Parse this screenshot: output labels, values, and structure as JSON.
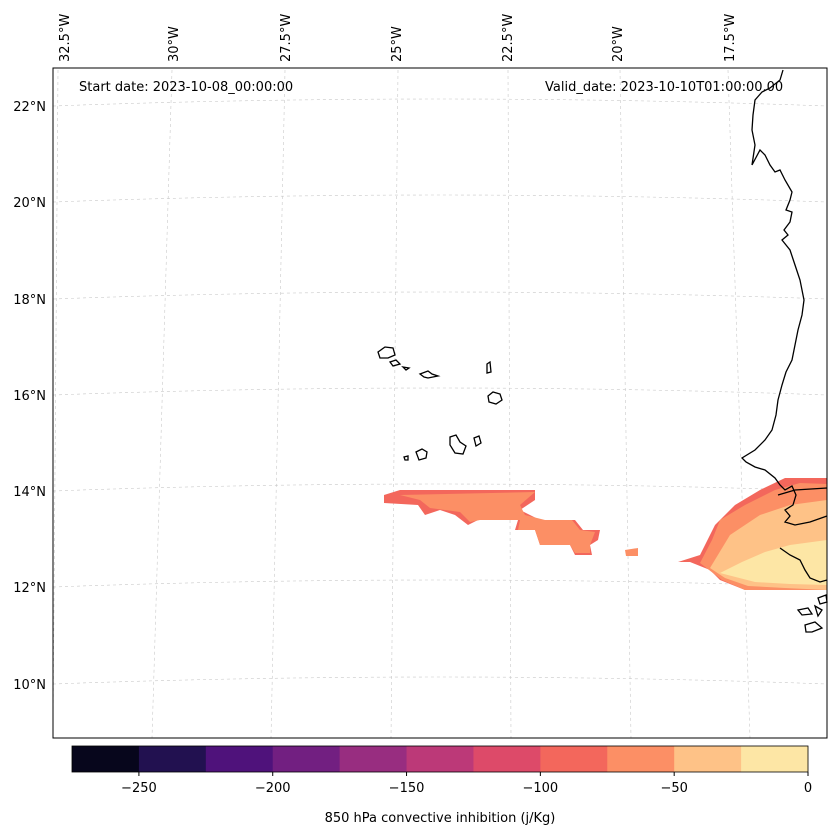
{
  "header": {
    "start_date": "Start date: 2023-10-08_00:00:00",
    "valid_date": "Valid_date: 2023-10-10T01:00:00.00"
  },
  "longitude_labels": [
    "32.5°W",
    "30°W",
    "27.5°W",
    "25°W",
    "22.5°W",
    "20°W",
    "17.5°W"
  ],
  "latitude_labels": [
    "22°N",
    "20°N",
    "18°N",
    "16°N",
    "14°N",
    "12°N",
    "10°N"
  ],
  "colorbar": {
    "label": "850 hPa convective inhibition (j/Kg)",
    "ticks": [
      "−250",
      "−200",
      "−150",
      "−100",
      "−50",
      "0"
    ],
    "range": [
      -275,
      0
    ],
    "colors": [
      "#07061c",
      "#221150",
      "#4f127b",
      "#721f81",
      "#982d80",
      "#bc3978",
      "#dd4a69",
      "#f3675c",
      "#fc8f65",
      "#fec287",
      "#fde6a5"
    ]
  },
  "colors": {
    "gridline": "#c8c8c8",
    "coastline": "#000000"
  }
}
